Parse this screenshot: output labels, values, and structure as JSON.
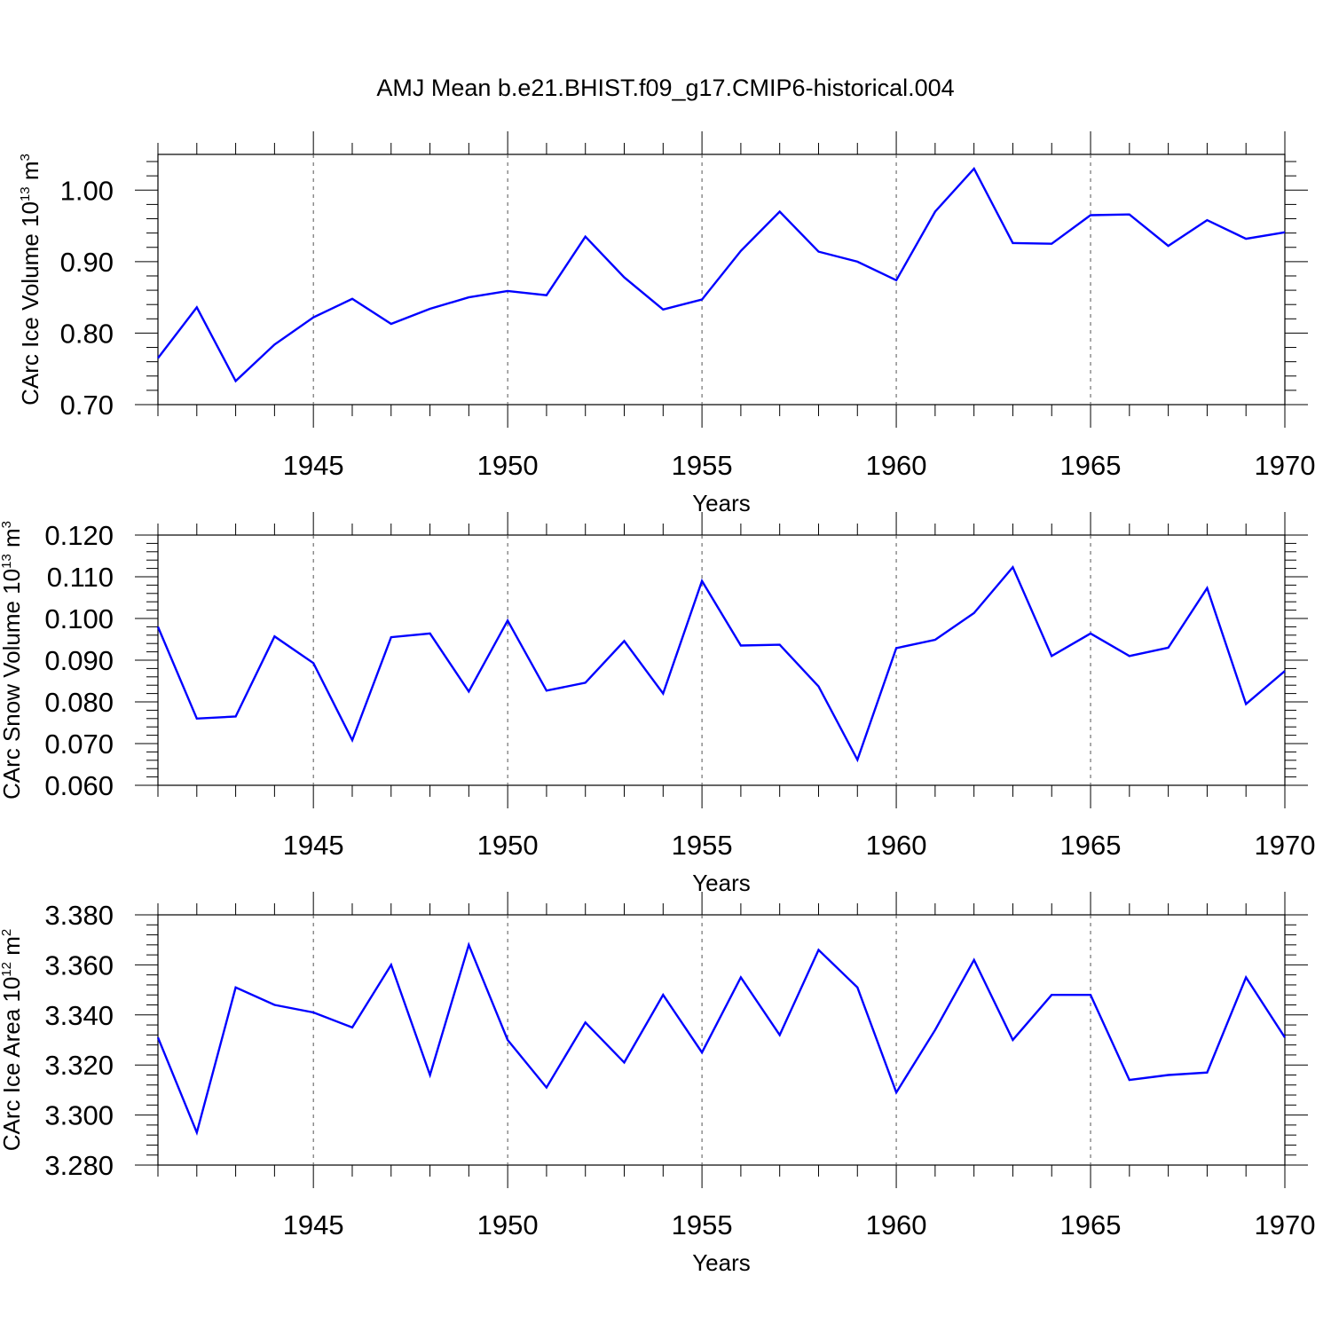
{
  "title": "AMJ Mean b.e21.BHIST.f09_g17.CMIP6-historical.004",
  "chart_data": [
    {
      "type": "line",
      "ylabel": "CArc Ice Volume 10",
      "ylabel_sup": "13",
      "ylabel_unit": " m",
      "ylabel_unit_sup": "3",
      "xlabel": "Years",
      "xlim": [
        1941,
        1970
      ],
      "ylim": [
        0.7,
        1.05
      ],
      "y_ticks": [
        "0.70",
        "0.80",
        "0.90",
        "1.00"
      ],
      "x_ticks": [
        "1945",
        "1950",
        "1955",
        "1960",
        "1965",
        "1970"
      ],
      "line_color": "#0000ff",
      "grid": "dashed vertical at major x ticks",
      "series": [
        {
          "x": [
            1941,
            1942,
            1943,
            1944,
            1945,
            1946,
            1947,
            1948,
            1949,
            1950,
            1951,
            1952,
            1953,
            1954,
            1955,
            1956,
            1957,
            1958,
            1959,
            1960,
            1961,
            1962,
            1963,
            1964,
            1965,
            1966,
            1967,
            1968,
            1969,
            1970
          ],
          "values": [
            0.765,
            0.836,
            0.733,
            0.784,
            0.822,
            0.848,
            0.813,
            0.834,
            0.85,
            0.859,
            0.853,
            0.935,
            0.878,
            0.833,
            0.847,
            0.915,
            0.97,
            0.914,
            0.9,
            0.874,
            0.97,
            1.03,
            0.926,
            0.925,
            0.965,
            0.966,
            0.922,
            0.958,
            0.932,
            0.941
          ]
        }
      ]
    },
    {
      "type": "line",
      "ylabel": "CArc Snow Volume 10",
      "ylabel_sup": "13",
      "ylabel_unit": " m",
      "ylabel_unit_sup": "3",
      "xlabel": "Years",
      "xlim": [
        1941,
        1970
      ],
      "ylim": [
        0.06,
        0.12
      ],
      "y_ticks": [
        "0.060",
        "0.070",
        "0.080",
        "0.090",
        "0.100",
        "0.110",
        "0.120"
      ],
      "x_ticks": [
        "1945",
        "1950",
        "1955",
        "1960",
        "1965",
        "1970"
      ],
      "line_color": "#0000ff",
      "grid": "dashed vertical at major x ticks",
      "series": [
        {
          "x": [
            1941,
            1942,
            1943,
            1944,
            1945,
            1946,
            1947,
            1948,
            1949,
            1950,
            1951,
            1952,
            1953,
            1954,
            1955,
            1956,
            1957,
            1958,
            1959,
            1960,
            1961,
            1962,
            1963,
            1964,
            1965,
            1966,
            1967,
            1968,
            1969,
            1970
          ],
          "values": [
            0.098,
            0.076,
            0.0765,
            0.0957,
            0.0893,
            0.0708,
            0.0955,
            0.0964,
            0.0825,
            0.0995,
            0.0827,
            0.0846,
            0.0946,
            0.082,
            0.109,
            0.0935,
            0.0937,
            0.0837,
            0.0661,
            0.0929,
            0.0949,
            0.1013,
            0.1123,
            0.091,
            0.0964,
            0.091,
            0.093,
            0.1073,
            0.0795,
            0.0874
          ]
        }
      ]
    },
    {
      "type": "line",
      "ylabel": "CArc Ice Area 10",
      "ylabel_sup": "12",
      "ylabel_unit": " m",
      "ylabel_unit_sup": "2",
      "xlabel": "Years",
      "xlim": [
        1941,
        1970
      ],
      "ylim": [
        3.28,
        3.38
      ],
      "y_ticks": [
        "3.280",
        "3.300",
        "3.320",
        "3.340",
        "3.360",
        "3.380"
      ],
      "x_ticks": [
        "1945",
        "1950",
        "1955",
        "1960",
        "1965",
        "1970"
      ],
      "line_color": "#0000ff",
      "grid": "dashed vertical at major x ticks",
      "series": [
        {
          "x": [
            1941,
            1942,
            1943,
            1944,
            1945,
            1946,
            1947,
            1948,
            1949,
            1950,
            1951,
            1952,
            1953,
            1954,
            1955,
            1956,
            1957,
            1958,
            1959,
            1960,
            1961,
            1962,
            1963,
            1964,
            1965,
            1966,
            1967,
            1968,
            1969,
            1970
          ],
          "values": [
            3.331,
            3.293,
            3.351,
            3.344,
            3.341,
            3.335,
            3.36,
            3.316,
            3.368,
            3.33,
            3.311,
            3.337,
            3.321,
            3.348,
            3.325,
            3.355,
            3.332,
            3.366,
            3.351,
            3.309,
            3.334,
            3.362,
            3.33,
            3.348,
            3.348,
            3.314,
            3.316,
            3.317,
            3.355,
            3.331
          ]
        }
      ]
    }
  ]
}
